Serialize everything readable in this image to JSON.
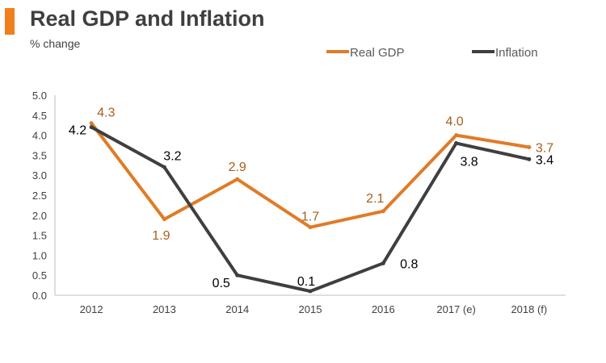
{
  "colors": {
    "accent": "#f07f1c",
    "gdp": "#e07b27",
    "inflation": "#3f3f3f",
    "gdp_label": "#a65f1c",
    "inflation_label": "#000000"
  },
  "chart_data": {
    "type": "line",
    "title": "Real GDP and Inflation",
    "subtitle": "% change",
    "categories": [
      "2012",
      "2013",
      "2014",
      "2015",
      "2016",
      "2017 (e)",
      "2018 (f)"
    ],
    "ylim": [
      0,
      5
    ],
    "yticks": [
      "0.0",
      "0.5",
      "1.0",
      "1.5",
      "2.0",
      "2.5",
      "3.0",
      "3.5",
      "4.0",
      "4.5",
      "5.0"
    ],
    "legend_position": "top-right",
    "grid": false,
    "series": [
      {
        "name": "Real GDP",
        "values": [
          4.3,
          1.9,
          2.9,
          1.7,
          2.1,
          4.0,
          3.7
        ],
        "labels": [
          "4.3",
          "1.9",
          "2.9",
          "1.7",
          "2.1",
          "4.0",
          "3.7"
        ]
      },
      {
        "name": "Inflation",
        "values": [
          4.2,
          3.2,
          0.5,
          0.1,
          0.8,
          3.8,
          3.4
        ],
        "labels": [
          "4.2",
          "3.2",
          "0.5",
          "0.1",
          "0.8",
          "3.8",
          "3.4"
        ]
      }
    ]
  }
}
